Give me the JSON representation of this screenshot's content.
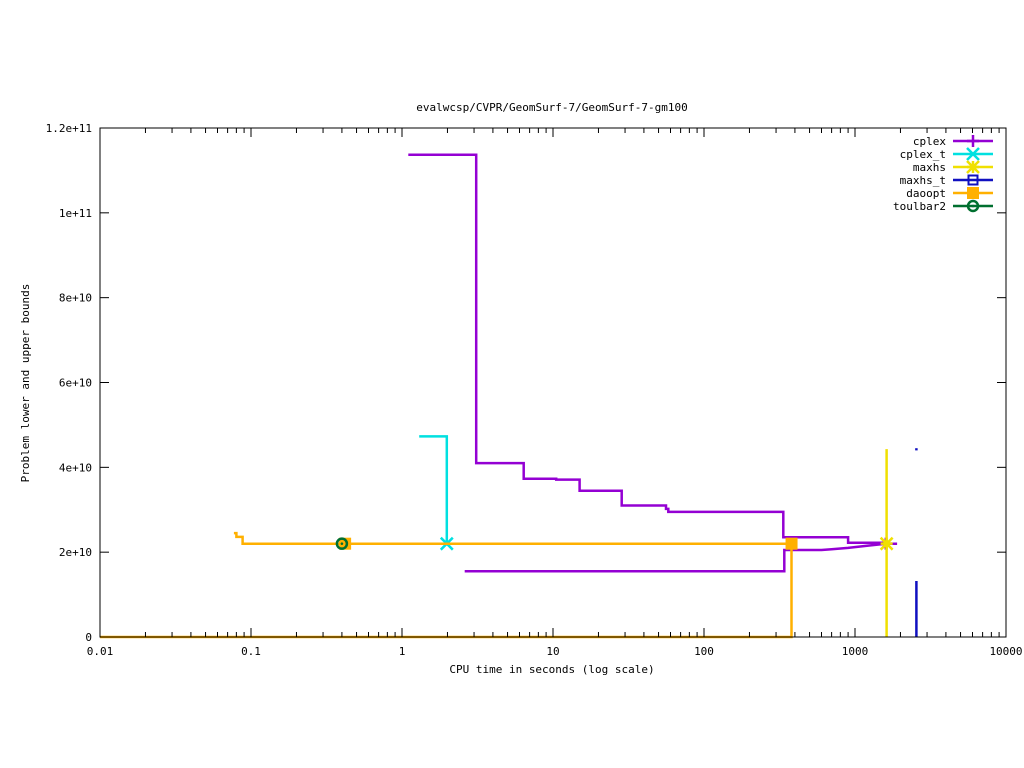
{
  "chart_data": {
    "type": "line",
    "title": "evalwcsp/CVPR/GeomSurf-7/GeomSurf-7-gm100",
    "xlabel": "CPU time in seconds (log scale)",
    "ylabel": "Problem lower and upper bounds",
    "xscale": "log",
    "xlim": [
      0.01,
      10000
    ],
    "ylim": [
      0,
      120000000000
    ],
    "grid": false,
    "legend_position": "top-right",
    "x_ticks": [
      {
        "value": 0.01,
        "label": "0.01"
      },
      {
        "value": 0.1,
        "label": "0.1"
      },
      {
        "value": 1,
        "label": "1"
      },
      {
        "value": 10,
        "label": "10"
      },
      {
        "value": 100,
        "label": "100"
      },
      {
        "value": 1000,
        "label": "1000"
      },
      {
        "value": 10000,
        "label": "10000"
      }
    ],
    "y_ticks": [
      {
        "value": 0,
        "label": "0"
      },
      {
        "value": 20000000000,
        "label": "2e+10"
      },
      {
        "value": 40000000000,
        "label": "4e+10"
      },
      {
        "value": 60000000000,
        "label": "6e+10"
      },
      {
        "value": 80000000000,
        "label": "8e+10"
      },
      {
        "value": 100000000000,
        "label": "1e+11"
      },
      {
        "value": 120000000000,
        "label": "1.2e+11"
      }
    ],
    "series": [
      {
        "name": "cplex",
        "color": "#9400d3",
        "marker": "plus",
        "segments": [
          [
            [
              1.1,
              113700000000
            ],
            [
              3.1,
              113700000000
            ],
            [
              3.1,
              41000000000
            ],
            [
              6.4,
              41000000000
            ],
            [
              6.4,
              37300000000
            ],
            [
              10.5,
              37300000000
            ],
            [
              10.5,
              37100000000
            ],
            [
              15,
              37100000000
            ],
            [
              15,
              34500000000
            ],
            [
              28.5,
              34500000000
            ],
            [
              28.5,
              31000000000
            ],
            [
              56,
              31000000000
            ],
            [
              56,
              30200000000
            ],
            [
              58,
              30200000000
            ],
            [
              58,
              29500000000
            ],
            [
              335,
              29500000000
            ],
            [
              335,
              23500000000
            ],
            [
              900,
              23500000000
            ],
            [
              900,
              22200000000
            ],
            [
              1550,
              22200000000
            ],
            [
              1550,
              22000000000
            ],
            [
              1900,
              22000000000
            ]
          ],
          [
            [
              2.6,
              15500000000
            ],
            [
              340,
              15500000000
            ],
            [
              340,
              20500000000
            ],
            [
              600,
              20500000000
            ],
            [
              700,
              20700000000
            ],
            [
              900,
              21000000000
            ],
            [
              1200,
              21500000000
            ],
            [
              1600,
              22000000000
            ]
          ]
        ],
        "markers": [
          [
            1600,
            22000000000
          ]
        ]
      },
      {
        "name": "cplex_t",
        "color": "#00e0e0",
        "marker": "x",
        "segments": [
          [
            [
              1.3,
              47300000000
            ],
            [
              1.98,
              47300000000
            ],
            [
              1.98,
              22000000000
            ]
          ]
        ],
        "markers": [
          [
            1.98,
            22000000000
          ]
        ]
      },
      {
        "name": "maxhs",
        "color": "#f0e000",
        "marker": "star",
        "segments": [
          [
            [
              1620,
              44300000000
            ],
            [
              1620,
              0
            ]
          ]
        ],
        "markers": [
          [
            1620,
            22000000000
          ]
        ]
      },
      {
        "name": "maxhs_t",
        "color": "#1010c0",
        "marker": "open-square",
        "segments": [
          [
            [
              2550,
              44500000000
            ],
            [
              2550,
              44000000000
            ]
          ],
          [
            [
              2550,
              13200000000
            ],
            [
              2550,
              0
            ]
          ]
        ],
        "markers": []
      },
      {
        "name": "daoopt",
        "color": "#ffb000",
        "marker": "filled-square",
        "segments": [
          [
            [
              0.077,
              24500000000
            ],
            [
              0.08,
              24500000000
            ],
            [
              0.08,
              23600000000
            ],
            [
              0.088,
              23600000000
            ],
            [
              0.088,
              22000000000
            ],
            [
              380,
              22000000000
            ]
          ],
          [
            [
              0.01,
              0
            ],
            [
              380,
              0
            ],
            [
              380,
              22000000000
            ]
          ]
        ],
        "markers": [
          [
            0.42,
            22000000000
          ],
          [
            380,
            22000000000
          ]
        ]
      },
      {
        "name": "toulbar2",
        "color": "#006f2f",
        "marker": "circle",
        "segments": [],
        "markers": [
          [
            0.4,
            22000000000
          ]
        ]
      }
    ]
  }
}
